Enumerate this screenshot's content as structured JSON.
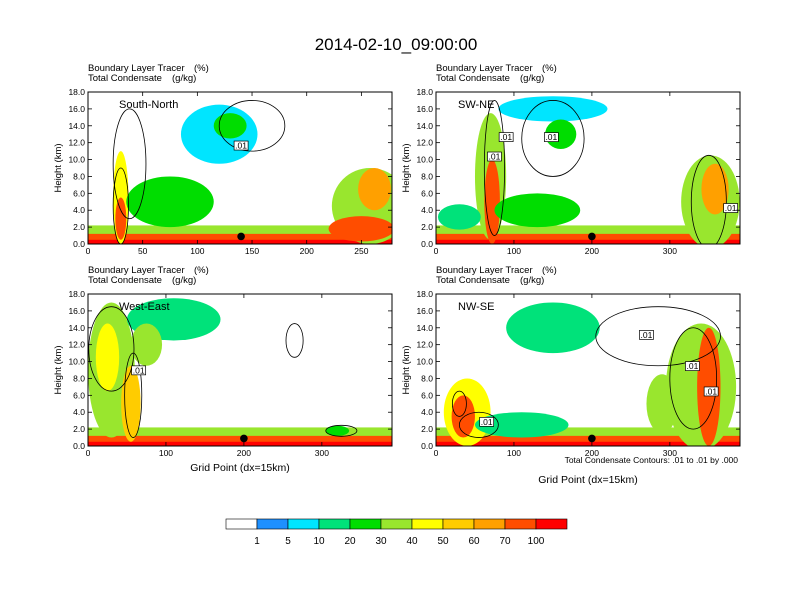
{
  "chart_data": {
    "type": "heatmap",
    "title": "2014-02-10_09:00:00",
    "shading_variable": "Boundary Layer Tracer",
    "shading_units": "(%)",
    "contour_variable": "Total Condensate",
    "contour_units": "(g/kg)",
    "ylabel": "Height (km)",
    "xlabel": "Grid Point (dx=15km)",
    "ylim": [
      0,
      18
    ],
    "yticks": [
      "0.0",
      "2.0",
      "4.0",
      "6.0",
      "8.0",
      "10.0",
      "12.0",
      "14.0",
      "16.0",
      "18.0"
    ],
    "contour_note": "Total Condensate Contours: .01 to .01 by .000",
    "contour_label": ".01",
    "colorbar": {
      "levels": [
        "1",
        "5",
        "10",
        "20",
        "30",
        "40",
        "50",
        "60",
        "70",
        "100"
      ],
      "colors": [
        "#ffffff",
        "#1e90ff",
        "#00e5ff",
        "#00e27a",
        "#00dd00",
        "#99e62e",
        "#ffff00",
        "#ffcc00",
        "#ffa000",
        "#ff4d00",
        "#ff0000"
      ]
    },
    "panels": [
      {
        "name": "South-North",
        "xmax": 278,
        "xticks": [
          "0",
          "50",
          "100",
          "150",
          "200",
          "250"
        ],
        "marker_x": 140,
        "blobs": [
          {
            "x": 30,
            "y": 5.5,
            "w": 14,
            "h": 11,
            "v": 40
          },
          {
            "x": 30,
            "y": 3,
            "w": 10,
            "h": 5,
            "v": 75
          },
          {
            "x": 120,
            "y": 13,
            "w": 70,
            "h": 7,
            "v": 8
          },
          {
            "x": 130,
            "y": 14,
            "w": 30,
            "h": 3,
            "v": 28
          },
          {
            "x": 75,
            "y": 5,
            "w": 80,
            "h": 6,
            "v": 22
          },
          {
            "x": 258,
            "y": 4.5,
            "w": 70,
            "h": 9,
            "v": 35
          },
          {
            "x": 262,
            "y": 6.5,
            "w": 30,
            "h": 5,
            "v": 62
          },
          {
            "x": 250,
            "y": 1.8,
            "w": 60,
            "h": 3,
            "v": 85
          }
        ],
        "contours": [
          {
            "x": 38,
            "y": 9.5,
            "w": 30,
            "h": 13
          },
          {
            "x": 150,
            "y": 14,
            "w": 60,
            "h": 6
          },
          {
            "x": 30,
            "y": 4.5,
            "w": 14,
            "h": 9
          }
        ],
        "boxes": [
          {
            "x": 140,
            "y": 11.6
          }
        ]
      },
      {
        "name": "SW-NE",
        "xmax": 390,
        "xticks": [
          "0",
          "100",
          "200",
          "300"
        ],
        "marker_x": 200,
        "blobs": [
          {
            "x": 70,
            "y": 8,
            "w": 40,
            "h": 15,
            "v": 30
          },
          {
            "x": 72,
            "y": 5,
            "w": 20,
            "h": 10,
            "v": 72
          },
          {
            "x": 150,
            "y": 16,
            "w": 140,
            "h": 3,
            "v": 8
          },
          {
            "x": 160,
            "y": 13,
            "w": 40,
            "h": 3.5,
            "v": 22
          },
          {
            "x": 130,
            "y": 4,
            "w": 110,
            "h": 4,
            "v": 25
          },
          {
            "x": 352,
            "y": 5,
            "w": 75,
            "h": 11,
            "v": 38
          },
          {
            "x": 358,
            "y": 6.5,
            "w": 35,
            "h": 6,
            "v": 66
          },
          {
            "x": 30,
            "y": 3.2,
            "w": 55,
            "h": 3,
            "v": 18
          }
        ],
        "contours": [
          {
            "x": 150,
            "y": 12.5,
            "w": 80,
            "h": 9
          },
          {
            "x": 75,
            "y": 9,
            "w": 26,
            "h": 16
          },
          {
            "x": 350,
            "y": 5,
            "w": 45,
            "h": 11
          }
        ],
        "boxes": [
          {
            "x": 90,
            "y": 12.6
          },
          {
            "x": 148,
            "y": 12.6
          },
          {
            "x": 75,
            "y": 10.3
          },
          {
            "x": 378,
            "y": 4.2
          }
        ]
      },
      {
        "name": "West-East",
        "xmax": 390,
        "xticks": [
          "0",
          "100",
          "200",
          "300"
        ],
        "marker_x": 200,
        "blobs": [
          {
            "x": 30,
            "y": 9,
            "w": 60,
            "h": 16,
            "v": 32
          },
          {
            "x": 25,
            "y": 10.5,
            "w": 30,
            "h": 8,
            "v": 48
          },
          {
            "x": 55,
            "y": 5,
            "w": 25,
            "h": 9,
            "v": 58
          },
          {
            "x": 110,
            "y": 15,
            "w": 120,
            "h": 5,
            "v": 15
          },
          {
            "x": 75,
            "y": 12,
            "w": 40,
            "h": 5,
            "v": 35
          },
          {
            "x": 320,
            "y": 1.8,
            "w": 30,
            "h": 1.2,
            "v": 22
          }
        ],
        "contours": [
          {
            "x": 30,
            "y": 11.5,
            "w": 58,
            "h": 10
          },
          {
            "x": 58,
            "y": 6,
            "w": 22,
            "h": 10
          },
          {
            "x": 265,
            "y": 12.5,
            "w": 22,
            "h": 4
          },
          {
            "x": 325,
            "y": 1.8,
            "w": 40,
            "h": 1.3
          }
        ],
        "boxes": [
          {
            "x": 65,
            "y": 8.9
          }
        ]
      },
      {
        "name": "NW-SE",
        "xmax": 390,
        "xticks": [
          "0",
          "100",
          "200",
          "300"
        ],
        "marker_x": 200,
        "blobs": [
          {
            "x": 40,
            "y": 4,
            "w": 60,
            "h": 8,
            "v": 40
          },
          {
            "x": 35,
            "y": 3.5,
            "w": 30,
            "h": 5,
            "v": 78
          },
          {
            "x": 110,
            "y": 2.5,
            "w": 120,
            "h": 3,
            "v": 18
          },
          {
            "x": 150,
            "y": 14,
            "w": 120,
            "h": 6,
            "v": 12
          },
          {
            "x": 340,
            "y": 7,
            "w": 90,
            "h": 15,
            "v": 30
          },
          {
            "x": 350,
            "y": 7,
            "w": 30,
            "h": 14,
            "v": 70
          },
          {
            "x": 290,
            "y": 5,
            "w": 40,
            "h": 7,
            "v": 30
          }
        ],
        "contours": [
          {
            "x": 285,
            "y": 13,
            "w": 160,
            "h": 7
          },
          {
            "x": 330,
            "y": 8,
            "w": 60,
            "h": 12
          },
          {
            "x": 55,
            "y": 2.5,
            "w": 50,
            "h": 3
          },
          {
            "x": 30,
            "y": 5,
            "w": 18,
            "h": 3
          }
        ],
        "boxes": [
          {
            "x": 270,
            "y": 13.1
          },
          {
            "x": 329,
            "y": 9.4
          },
          {
            "x": 353,
            "y": 6.4
          },
          {
            "x": 65,
            "y": 2.8
          }
        ]
      }
    ]
  }
}
